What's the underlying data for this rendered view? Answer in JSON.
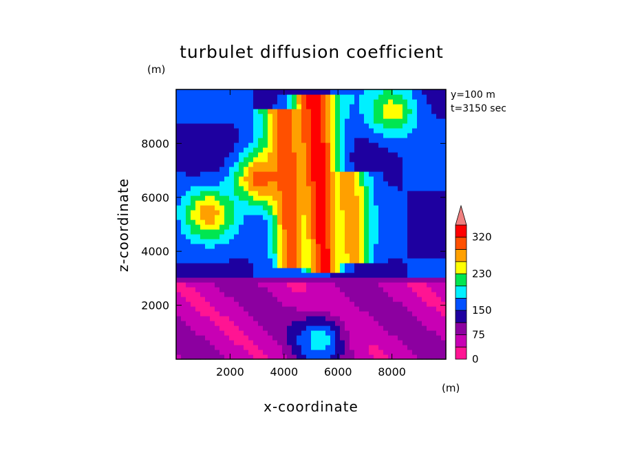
{
  "chart_data": {
    "type": "heatmap",
    "title": "turbulet diffusion coefficient",
    "xlabel": "x-coordinate",
    "ylabel": "z-coordinate",
    "x_unit": "(m)",
    "y_unit": "(m)",
    "annotations": [
      "y=100 m",
      "t=3150 sec"
    ],
    "xlim": [
      0,
      10000
    ],
    "ylim": [
      0,
      10000
    ],
    "xticks": [
      2000,
      4000,
      6000,
      8000
    ],
    "yticks": [
      2000,
      4000,
      6000,
      8000
    ],
    "xtick_labels": [
      "2000",
      "4000",
      "6000",
      "8000"
    ],
    "ytick_labels": [
      "2000",
      "4000",
      "6000",
      "8000"
    ],
    "colorbar": {
      "colors": [
        "#ff1493",
        "#c800b4",
        "#8c00a0",
        "#1e00a0",
        "#0050ff",
        "#00f0ff",
        "#00e650",
        "#ffff00",
        "#ffa000",
        "#ff5000",
        "#ff0000",
        "#f08080"
      ],
      "tick_labels": [
        "0",
        "75",
        "150",
        "230",
        "320"
      ],
      "extend_max": true
    },
    "field": {
      "description_levels": "level index 0-11 corresponds to colorbar colors",
      "features": [
        {
          "kind": "plume",
          "x": 5500,
          "y_base": 3300,
          "y_top": 9800,
          "peak_level": 10
        },
        {
          "kind": "plume",
          "x": 4300,
          "y_base": 3400,
          "y_top": 9300,
          "peak_level": 9
        },
        {
          "kind": "plume",
          "x": 6600,
          "y_base": 3500,
          "y_top": 7000,
          "peak_level": 8
        },
        {
          "kind": "blob",
          "x": 3100,
          "y": 6700,
          "peak_level": 9
        },
        {
          "kind": "blob",
          "x": 1200,
          "y": 5400,
          "peak_level": 8
        },
        {
          "kind": "blob",
          "x": 8000,
          "y": 9200,
          "peak_level": 7
        },
        {
          "kind": "blob",
          "x": 5300,
          "y": 700,
          "peak_level": 5
        }
      ]
    }
  }
}
